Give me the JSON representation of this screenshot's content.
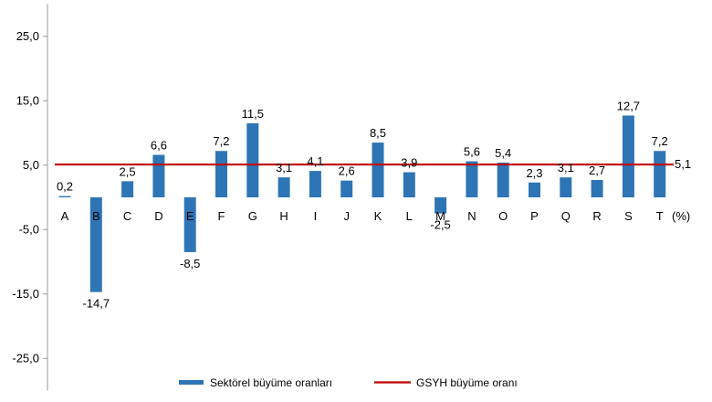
{
  "chart_data": {
    "type": "bar",
    "categories": [
      "A",
      "B",
      "C",
      "D",
      "E",
      "F",
      "G",
      "H",
      "I",
      "J",
      "K",
      "L",
      "M",
      "N",
      "O",
      "P",
      "Q",
      "R",
      "S",
      "T"
    ],
    "series": [
      {
        "name": "Sektörel büyüme oranları",
        "values": [
          0.2,
          -14.7,
          2.5,
          6.6,
          -8.5,
          7.2,
          11.5,
          3.1,
          4.1,
          2.6,
          8.5,
          3.9,
          -2.5,
          5.6,
          5.4,
          2.3,
          3.1,
          2.7,
          12.7,
          7.2
        ],
        "labels": [
          "0,2",
          "-14,7",
          "2,5",
          "6,6",
          "-8,5",
          "7,2",
          "11,5",
          "3,1",
          "4,1",
          "2,6",
          "8,5",
          "3,9",
          "-2,5",
          "5,6",
          "5,4",
          "2,3",
          "3,1",
          "2,7",
          "12,7",
          "7,2"
        ],
        "color": "#2E75B6"
      },
      {
        "name": "GSYH büyüme oranı",
        "type": "line",
        "value": 5.1,
        "label": "5,1",
        "color": "#C00000"
      }
    ],
    "ylim": [
      -30,
      30
    ],
    "yticks": [
      25,
      15,
      5,
      -5,
      -15,
      -25
    ],
    "ytick_labels": [
      "25,0",
      "15,0",
      "5,0",
      "-5,0",
      "-15,0",
      "-25,0"
    ],
    "unit_label": "(%)",
    "grid": false,
    "legend_position": "bottom"
  }
}
